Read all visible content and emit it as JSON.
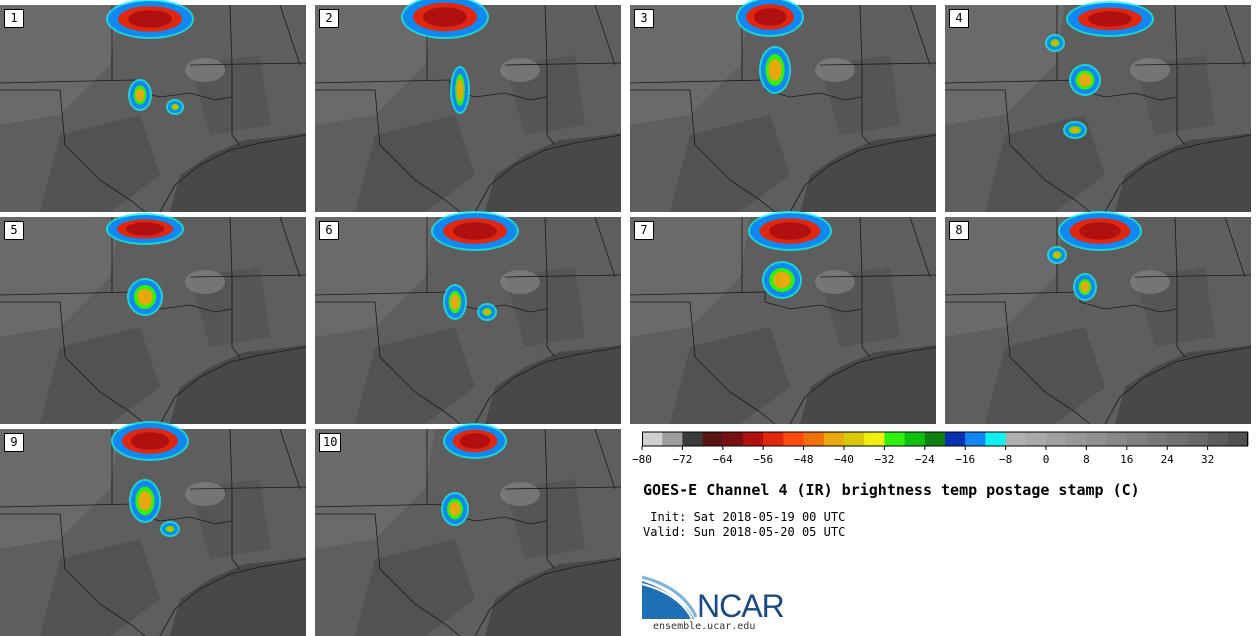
{
  "figure": {
    "title": "GOES-E Channel 4 (IR) brightness temp postage stamp (C)",
    "init": " Init: Sat 2018-05-19 00 UTC",
    "valid": "Valid: Sun 2018-05-20 05 UTC",
    "logo_text": "NCAR",
    "url": "ensemble.ucar.edu"
  },
  "members": [
    "1",
    "2",
    "3",
    "4",
    "5",
    "6",
    "7",
    "8",
    "9",
    "10"
  ],
  "colorbar": {
    "tick_labels": [
      "−80",
      "−72",
      "−64",
      "−56",
      "−48",
      "−40",
      "−32",
      "−24",
      "−16",
      "−8",
      "0",
      "8",
      "16",
      "24",
      "32"
    ],
    "tick_values": [
      -80,
      -72,
      -64,
      -56,
      -48,
      -40,
      -32,
      -24,
      -16,
      -8,
      0,
      8,
      16,
      24,
      32
    ],
    "range": [
      -80,
      40
    ],
    "step": 4,
    "colors": [
      "#d0d0d0",
      "#9e9e9e",
      "#3b3b3b",
      "#5a1414",
      "#781010",
      "#b01010",
      "#e02810",
      "#ff4a10",
      "#f07010",
      "#e8a810",
      "#d8c808",
      "#f0f010",
      "#30f010",
      "#10c010",
      "#108010",
      "#0830b0",
      "#1088f0",
      "#10f0f0",
      "#b0b0b0",
      "#a8a8a8",
      "#a0a0a0",
      "#989898",
      "#909090",
      "#888888",
      "#808080",
      "#787878",
      "#707070",
      "#686868",
      "#5c5c5c",
      "#505050"
    ]
  }
}
